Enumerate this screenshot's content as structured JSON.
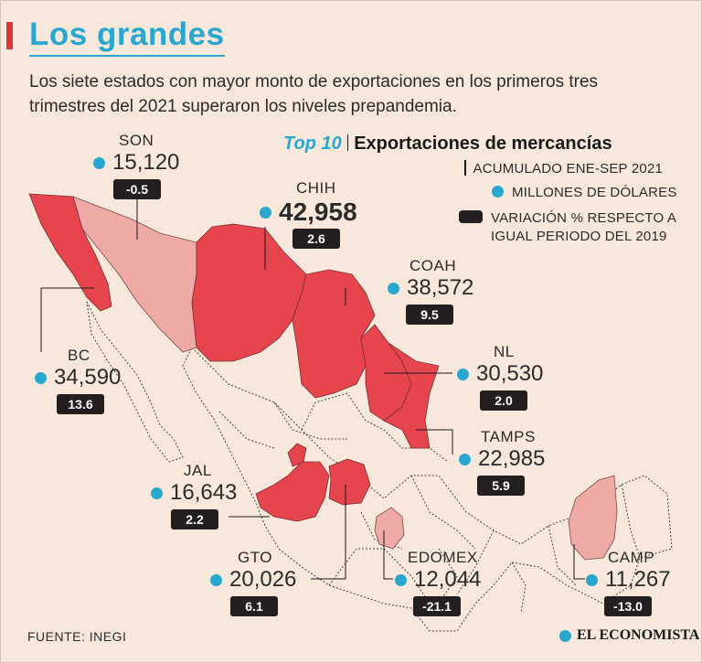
{
  "header": {
    "title": "Los grandes",
    "subtitle": "Los siete estados con mayor monto de exportaciones en los primeros tres trimestres del 2021 superaron los niveles prepandemia."
  },
  "legend": {
    "top": "Top 10",
    "title": "Exportaciones de mercancías",
    "period": "ACUMULADO ENE-SEP 2021",
    "units": "MILLONES DE DÓLARES",
    "variation_line1": "VARIACIÓN % RESPECTO A",
    "variation_line2": "IGUAL PERIODO DEL 2019"
  },
  "colors": {
    "accent": "#2aa7cf",
    "growth": "#e6454e",
    "decline": "#f0aaa5",
    "background": "#f7e8db",
    "chip": "#231f20"
  },
  "states": {
    "son": {
      "name": "SON",
      "value": "15,120",
      "change": "-0.5"
    },
    "chih": {
      "name": "CHIH",
      "value": "42,958",
      "change": "2.6"
    },
    "coah": {
      "name": "COAH",
      "value": "38,572",
      "change": "9.5"
    },
    "bc": {
      "name": "BC",
      "value": "34,590",
      "change": "13.6"
    },
    "nl": {
      "name": "NL",
      "value": "30,530",
      "change": "2.0"
    },
    "tamps": {
      "name": "TAMPS",
      "value": "22,985",
      "change": "5.9"
    },
    "jal": {
      "name": "JAL",
      "value": "16,643",
      "change": "2.2"
    },
    "gto": {
      "name": "GTO",
      "value": "20,026",
      "change": "6.1"
    },
    "edomex": {
      "name": "EDOMEX",
      "value": "12,044",
      "change": "-21.1"
    },
    "camp": {
      "name": "CAMP",
      "value": "11,267",
      "change": "-13.0"
    }
  },
  "footer": {
    "source": "FUENTE: INEGI",
    "brand": "EL ECONOMISTA"
  }
}
